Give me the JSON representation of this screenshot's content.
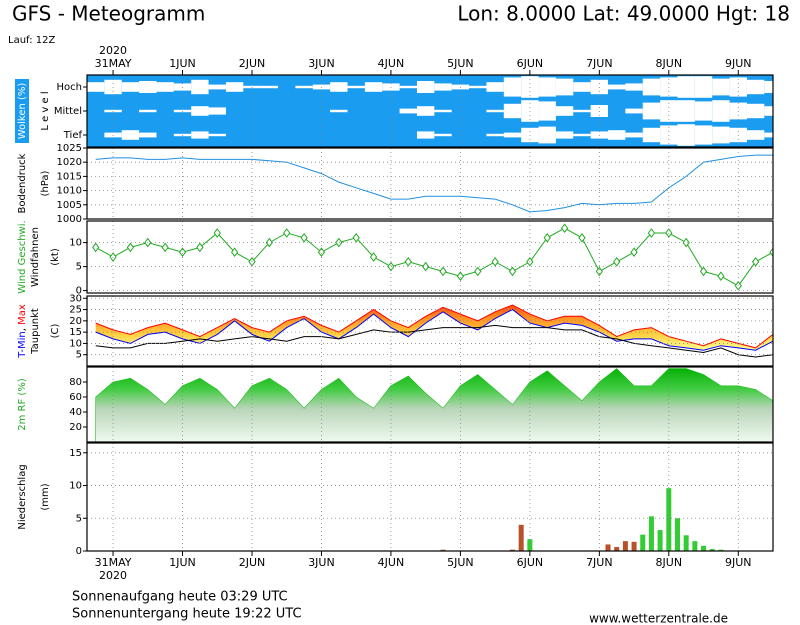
{
  "title": "GFS - Meteogramm",
  "location": "Lon: 8.0000 Lat: 49.0000 Hgt: 18",
  "run": "Lauf: 12Z",
  "time_axis": {
    "year": "2020",
    "x": [
      -6,
      0,
      6,
      12,
      18,
      24,
      30,
      36,
      42,
      48,
      54,
      60,
      66,
      72,
      78,
      84,
      90,
      96,
      102,
      108,
      114,
      120,
      126,
      132,
      138,
      144,
      150,
      156,
      162,
      168,
      174,
      180,
      186,
      192,
      198,
      204,
      210,
      216,
      222,
      228
    ],
    "xlim": [
      -9,
      228
    ],
    "xticks": [
      {
        "value": 0,
        "label": "31MAY"
      },
      {
        "value": 24,
        "label": "1JUN"
      },
      {
        "value": 48,
        "label": "2JUN"
      },
      {
        "value": 72,
        "label": "3JUN"
      },
      {
        "value": 96,
        "label": "4JUN"
      },
      {
        "value": 120,
        "label": "5JUN"
      },
      {
        "value": 144,
        "label": "6JUN"
      },
      {
        "value": 168,
        "label": "7JUN"
      },
      {
        "value": 192,
        "label": "8JUN"
      },
      {
        "value": 216,
        "label": "9JUN"
      }
    ]
  },
  "chart_data": [
    {
      "type": "clouds",
      "background": "#1a9cf0",
      "ylim": [
        0,
        100
      ],
      "y_labels": [
        [
          {
            "text": "Wolken (%)",
            "color": "#ffffff"
          }
        ],
        [
          {
            "text": "L e v e l",
            "color": "#000000"
          }
        ]
      ],
      "levels": [
        {
          "name": "Hoch",
          "color": "#ffffff",
          "values": [
            40,
            60,
            40,
            50,
            40,
            30,
            60,
            20,
            40,
            10,
            10,
            0,
            10,
            20,
            40,
            10,
            40,
            30,
            10,
            50,
            30,
            20,
            10,
            40,
            80,
            90,
            80,
            70,
            40,
            60,
            20,
            30,
            70,
            80,
            90,
            90,
            70,
            80,
            60,
            50
          ]
        },
        {
          "name": "Mittel",
          "color": "#ffffff",
          "values": [
            0,
            10,
            0,
            10,
            0,
            10,
            40,
            30,
            0,
            0,
            0,
            0,
            0,
            0,
            10,
            0,
            0,
            0,
            20,
            40,
            10,
            0,
            0,
            10,
            60,
            90,
            80,
            40,
            10,
            50,
            0,
            20,
            70,
            90,
            90,
            80,
            90,
            70,
            60,
            40
          ]
        },
        {
          "name": "Tief",
          "color": "#ffffff",
          "values": [
            0,
            20,
            40,
            20,
            0,
            10,
            30,
            10,
            0,
            0,
            0,
            0,
            0,
            0,
            0,
            0,
            0,
            0,
            0,
            30,
            10,
            0,
            0,
            10,
            20,
            60,
            70,
            30,
            10,
            30,
            40,
            20,
            60,
            80,
            90,
            80,
            70,
            60,
            40,
            20
          ]
        }
      ]
    },
    {
      "type": "line",
      "ylim": [
        1000,
        1025
      ],
      "yticks": [
        1000,
        1005,
        1010,
        1015,
        1020,
        1025
      ],
      "y_labels": [
        [
          {
            "text": "Bodendruck",
            "color": "#000000"
          }
        ],
        [
          {
            "text": "(hPa)",
            "color": "#000000"
          }
        ]
      ],
      "series": [
        {
          "color": "#2090e0",
          "values": [
            1021,
            1021.5,
            1021.5,
            1021,
            1021,
            1021.5,
            1021,
            1021,
            1021,
            1021,
            1020.5,
            1020,
            1018,
            1016,
            1013,
            1011,
            1009,
            1007,
            1007,
            1008,
            1008,
            1008,
            1007.5,
            1007,
            1005,
            1002.5,
            1003,
            1004,
            1005.5,
            1005,
            1005.5,
            1005.5,
            1006,
            1011,
            1015,
            1020,
            1021,
            1022,
            1022.5,
            1022.5
          ]
        }
      ]
    },
    {
      "type": "line",
      "ylim": [
        -0.5,
        14.5
      ],
      "yticks": [
        0,
        5,
        10
      ],
      "markers": "diamond",
      "y_labels": [
        [
          {
            "text": "Wind Geschwi.",
            "color": "#22aa22"
          }
        ],
        [
          {
            "text": "Windfahnen",
            "color": "#000000"
          }
        ],
        [
          {
            "text": "(kt)",
            "color": "#000000"
          }
        ]
      ],
      "series": [
        {
          "color": "#22aa22",
          "values": [
            9,
            7,
            9,
            10,
            9,
            8,
            9,
            12,
            8,
            6,
            10,
            12,
            11,
            8,
            10,
            11,
            7,
            5,
            6,
            5,
            4,
            3,
            4,
            6,
            4,
            6,
            11,
            13,
            11,
            4,
            6,
            8,
            12,
            12,
            10,
            4,
            3,
            1,
            6,
            8
          ]
        }
      ]
    },
    {
      "type": "band",
      "ylim": [
        0,
        31
      ],
      "yticks": [
        5,
        10,
        15,
        20,
        25,
        30
      ],
      "y_labels": [
        [
          {
            "text": "T-Min",
            "color": "#0000ff"
          },
          {
            "text": ", ",
            "color": "#000000"
          },
          {
            "text": "Max",
            "color": "#ff0000"
          }
        ],
        [
          {
            "text": "Taupunkt",
            "color": "#000000"
          }
        ],
        [
          {
            "text": "(C)",
            "color": "#000000"
          }
        ]
      ],
      "series": [
        {
          "color": "#ff0000",
          "values": [
            19,
            16,
            14,
            17,
            19,
            16,
            13,
            17,
            21,
            17,
            15,
            20,
            22,
            18,
            15,
            20,
            25,
            20,
            17,
            22,
            26,
            23,
            20,
            24,
            27,
            23,
            20,
            22,
            22,
            18,
            13,
            16,
            17,
            13,
            11,
            9,
            12,
            10,
            8,
            14
          ]
        },
        {
          "color": "#0000ff",
          "values": [
            15,
            12,
            10,
            14,
            15,
            12,
            10,
            14,
            20,
            14,
            11,
            17,
            21,
            15,
            12,
            17,
            23,
            17,
            13,
            19,
            24,
            19,
            16,
            21,
            25,
            19,
            17,
            19,
            18,
            15,
            11,
            12,
            12,
            9,
            8,
            7,
            9,
            8,
            7,
            11
          ]
        },
        {
          "color": "#000000",
          "values": [
            9,
            8,
            8,
            10,
            10,
            11,
            12,
            11,
            12,
            13,
            12,
            11,
            13,
            13,
            12,
            14,
            16,
            15,
            15,
            16,
            17,
            17,
            17,
            18,
            17,
            17,
            17,
            16,
            16,
            13,
            12,
            10,
            9,
            8,
            7,
            6,
            8,
            5,
            4,
            5
          ]
        }
      ]
    },
    {
      "type": "area",
      "ylim": [
        0,
        100
      ],
      "yticks": [
        20,
        40,
        60,
        80
      ],
      "y_labels": [
        [
          {
            "text": "2m RF (%)",
            "color": "#22aa22"
          }
        ]
      ],
      "series": [
        {
          "color": "#22bb22",
          "values": [
            60,
            80,
            85,
            70,
            50,
            75,
            85,
            70,
            45,
            75,
            85,
            70,
            45,
            70,
            85,
            60,
            45,
            75,
            88,
            65,
            45,
            75,
            90,
            70,
            50,
            80,
            95,
            75,
            55,
            80,
            98,
            75,
            75,
            98,
            98,
            90,
            75,
            75,
            70,
            55
          ]
        }
      ]
    },
    {
      "type": "bar",
      "ylim": [
        0,
        16.5
      ],
      "yticks": [
        0,
        5,
        10,
        15
      ],
      "y_labels": [
        [
          {
            "text": "Niederschlag",
            "color": "#000000"
          }
        ],
        [
          {
            "text": "(mm)",
            "color": "#000000"
          }
        ]
      ],
      "series": [
        {
          "color": "#b8502a",
          "x": [
            114,
            138,
            141,
            171,
            174,
            177,
            180
          ],
          "values": [
            0.2,
            0.2,
            4.0,
            1.0,
            0.6,
            1.5,
            1.4
          ]
        },
        {
          "color": "#33cc33",
          "x": [
            144,
            183,
            186,
            189,
            192,
            195,
            198,
            201,
            204,
            207,
            210
          ],
          "values": [
            1.8,
            2.5,
            5.3,
            3.2,
            9.6,
            5.0,
            2.4,
            1.5,
            0.8,
            0.3,
            0.2
          ]
        }
      ]
    }
  ],
  "sunrise": "Sonnenaufgang heute 03:29 UTC",
  "sunset": "Sonnenuntergang heute 19:22 UTC",
  "source": "www.wetterzentrale.de"
}
